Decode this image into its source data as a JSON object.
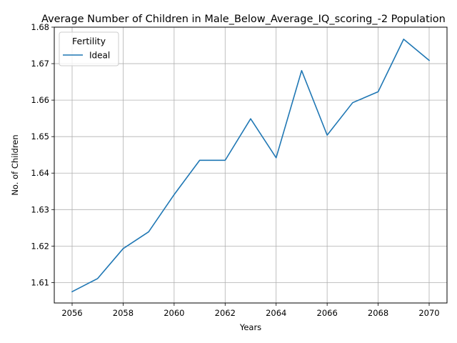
{
  "chart_data": {
    "type": "line",
    "title": "Average Number of Children in Male_Below_Average_IQ_scoring_-2 Population",
    "xlabel": "Years",
    "ylabel": "No. of Children",
    "xlim": [
      2055.3,
      2070.7
    ],
    "ylim": [
      1.6044,
      1.68
    ],
    "xticks": [
      2056,
      2058,
      2060,
      2062,
      2064,
      2066,
      2068,
      2070
    ],
    "yticks": [
      1.61,
      1.62,
      1.63,
      1.64,
      1.65,
      1.66,
      1.67,
      1.68
    ],
    "xtick_labels": [
      "2056",
      "2058",
      "2060",
      "2062",
      "2064",
      "2066",
      "2068",
      "2070"
    ],
    "ytick_labels": [
      "1.61",
      "1.62",
      "1.63",
      "1.64",
      "1.65",
      "1.66",
      "1.67",
      "1.68"
    ],
    "grid": true,
    "legend": {
      "title": "Fertility",
      "placement": "top-left"
    },
    "series": [
      {
        "name": "Ideal",
        "color": "#1f77b4",
        "x": [
          2056,
          2057,
          2058,
          2059,
          2060,
          2061,
          2062,
          2063,
          2064,
          2065,
          2066,
          2067,
          2068,
          2069,
          2070
        ],
        "y": [
          1.6075,
          1.6111,
          1.6193,
          1.6239,
          1.6341,
          1.6435,
          1.6435,
          1.6549,
          1.6442,
          1.6681,
          1.6504,
          1.6593,
          1.6623,
          1.6767,
          1.6709
        ]
      }
    ]
  }
}
